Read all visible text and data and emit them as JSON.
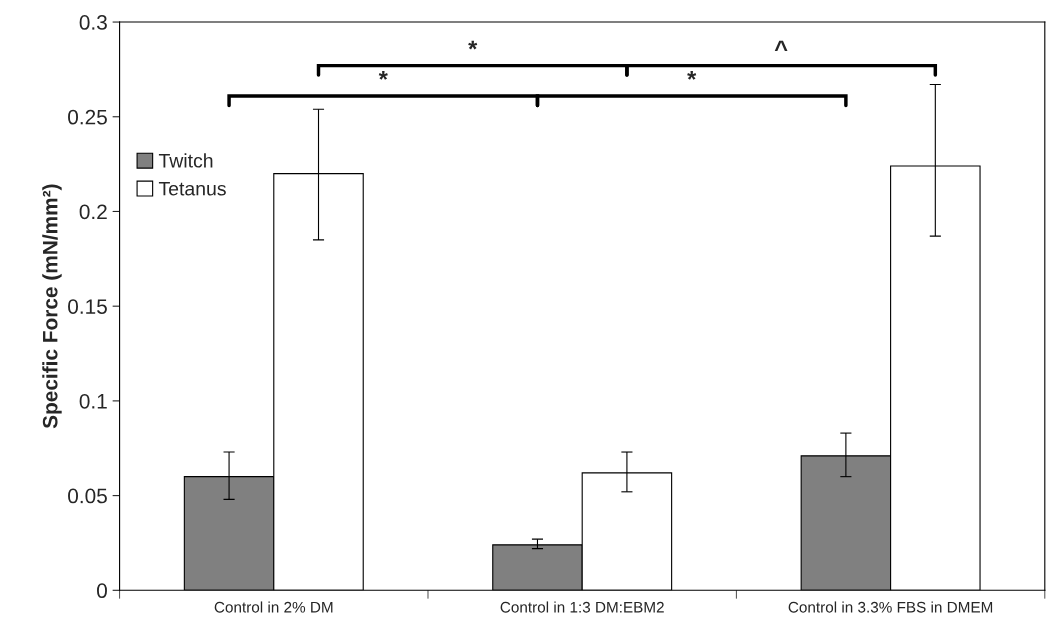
{
  "chart_data": {
    "type": "bar",
    "ylabel": "Specific Force (mN/mm²)",
    "categories": [
      "Control in 2% DM",
      "Control in 1:3 DM:EBM2",
      "Control in 3.3% FBS in DMEM"
    ],
    "series": [
      {
        "name": "Twitch",
        "color": "#808080",
        "values": [
          0.06,
          0.024,
          0.071
        ],
        "errors": [
          [
            0.048,
            0.073
          ],
          [
            0.022,
            0.027
          ],
          [
            0.06,
            0.083
          ]
        ]
      },
      {
        "name": "Tetanus",
        "color": "#ffffff",
        "values": [
          0.22,
          0.062,
          0.224
        ],
        "errors": [
          [
            0.185,
            0.254
          ],
          [
            0.052,
            0.073
          ],
          [
            0.187,
            0.267
          ]
        ]
      }
    ],
    "ylim": [
      0,
      0.3
    ],
    "yticks": [
      0,
      0.05,
      0.1,
      0.15,
      0.2,
      0.25,
      0.3
    ],
    "annotations": [
      "*",
      "*",
      "*",
      "^"
    ],
    "legend": "top left",
    "grid": false
  }
}
